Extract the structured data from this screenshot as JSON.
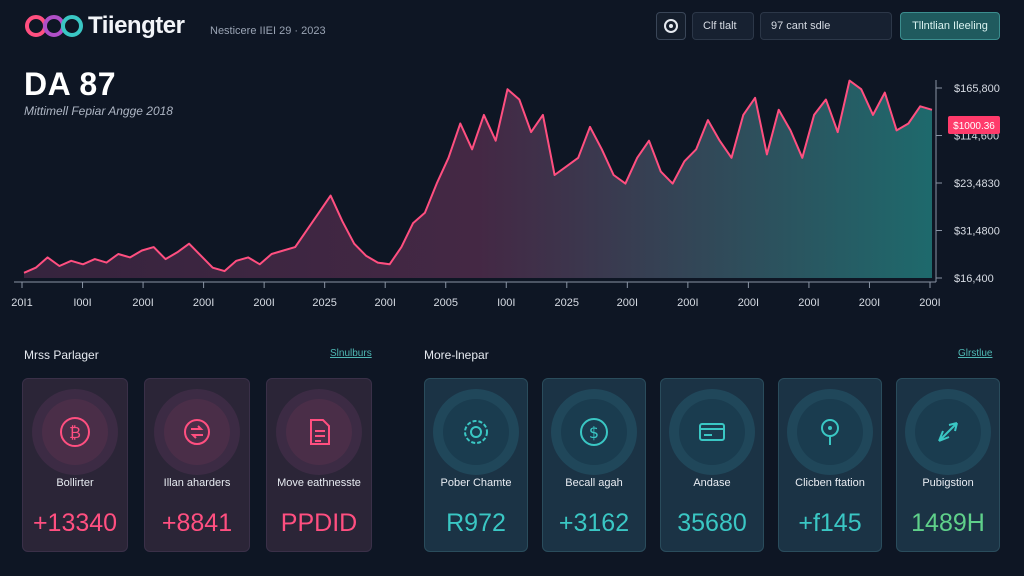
{
  "header": {
    "brand": "Tiiengter",
    "subtitle": "Nesticere IIEI 29 · 2023",
    "buttons": [
      "Clf tlalt",
      "97 cant sdle",
      "Tllntlian Ileeling"
    ],
    "icons": {
      "logo": "brand-logo",
      "action": "circle-icon"
    }
  },
  "chart": {
    "title": "DA 87",
    "subtitle": "Mittimell Fepiar Angge 2018",
    "current_price_badge": "$1000.36",
    "colors": {
      "line": "#ff4f80",
      "fill_end": "#1f6e70",
      "badge": "#ff3b6b"
    }
  },
  "chart_data": {
    "type": "area",
    "title": "DA 87",
    "subtitle": "Mittimell Fepiar Angge 2018",
    "x_tick_labels": [
      "20I1",
      "I00I",
      "200I",
      "200I",
      "200I",
      "2025",
      "200I",
      "2005",
      "I00I",
      "2025",
      "200I",
      "200I",
      "200I",
      "200I",
      "200I",
      "200I"
    ],
    "y_tick_labels": [
      "$165,800",
      "$114,600",
      "$23,4830",
      "$31,4800",
      "$16,400"
    ],
    "y_range": [
      0,
      100
    ],
    "values": [
      3,
      6,
      12,
      7,
      10,
      8,
      11,
      9,
      14,
      12,
      16,
      18,
      11,
      15,
      20,
      13,
      6,
      4,
      10,
      12,
      8,
      14,
      16,
      18,
      28,
      38,
      48,
      33,
      20,
      13,
      9,
      8,
      18,
      32,
      38,
      55,
      70,
      90,
      75,
      95,
      80,
      110,
      104,
      85,
      95,
      60,
      65,
      70,
      88,
      75,
      60,
      55,
      70,
      80,
      62,
      55,
      68,
      75,
      92,
      80,
      70,
      95,
      105,
      72,
      98,
      86,
      70,
      95,
      104,
      85,
      115,
      110,
      95,
      108,
      86,
      90,
      100,
      98
    ],
    "legend": "none",
    "grid": false
  },
  "sections": [
    {
      "title": "Mrss Parlager",
      "link": "Slnulburs",
      "cards": [
        {
          "label": "Bollirter",
          "value": "+13340",
          "icon": "bitcoin-icon"
        },
        {
          "label": "Illan aharders",
          "value": "+8841",
          "icon": "swap-icon"
        },
        {
          "label": "Move eathnesste",
          "value": "PPDID",
          "icon": "document-icon"
        }
      ]
    },
    {
      "title": "More-lnepar",
      "link": "Glrstlue",
      "cards": [
        {
          "label": "Pober Chamte",
          "value": "R972",
          "icon": "gear-icon"
        },
        {
          "label": "Becall agah",
          "value": "+3162",
          "icon": "dollar-icon"
        },
        {
          "label": "Andase",
          "value": "35680",
          "icon": "card-icon"
        },
        {
          "label": "Clicben ftation",
          "value": "+f145",
          "icon": "pin-icon"
        },
        {
          "label": "Pubigstion",
          "value": "1489H",
          "icon": "rocket-icon"
        }
      ]
    }
  ]
}
